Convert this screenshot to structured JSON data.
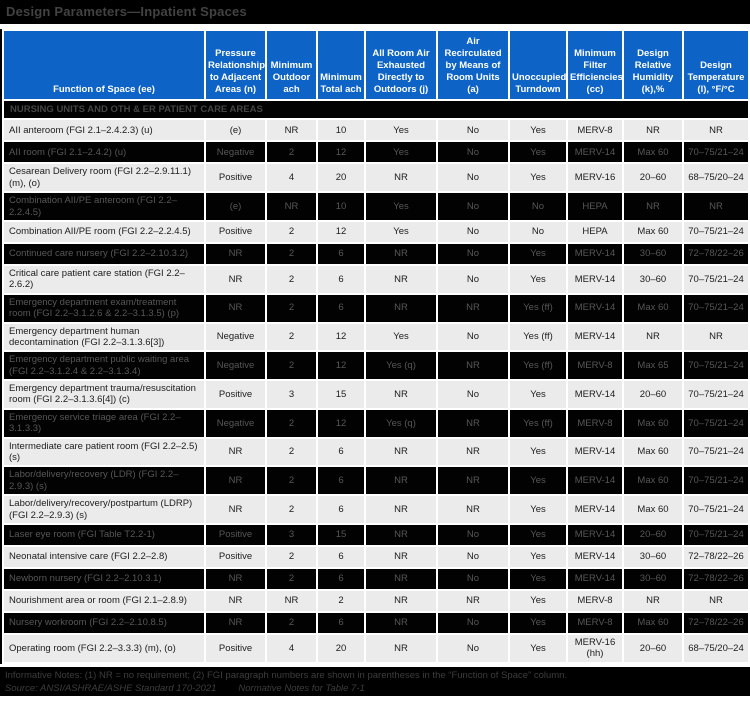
{
  "title": "Design Parameters—Inpatient Spaces",
  "colors": {
    "title_bar_bg": "#000000",
    "header_blue": "#0d63c6",
    "header_text": "#ffffff",
    "light_row_bg": "#ebebeb",
    "dark_row_bg": "#020202",
    "dark_row_text": "#575757",
    "footer_bg": "#000000"
  },
  "table": {
    "columns": [
      "Function of Space (ee)",
      "Pressure Relationship to Adjacent Areas (n)",
      "Minimum Outdoor ach",
      "Minimum Total ach",
      "All Room Air Exhausted Directly to Outdoors (j)",
      "Air Recirculated by Means of Room Units (a)",
      "Unoccupied Turndown",
      "Minimum Filter Efficiencies (cc)",
      "Design Relative Humidity (k),%",
      "Design Temperature (l), °F/°C"
    ],
    "section_header": "NURSING UNITS AND OTH & ER PATIENT CARE AREAS",
    "rows": [
      {
        "name": "AII anteroom (FGI 2.1–2.4.2.3) (u)",
        "values": [
          "(e)",
          "NR",
          "10",
          "Yes",
          "No",
          "Yes",
          "MERV-8",
          "NR",
          "NR"
        ]
      },
      {
        "name": "AII room (FGI 2.1–2.4.2) (u)",
        "values": [
          "Negative",
          "2",
          "12",
          "Yes",
          "No",
          "Yes",
          "MERV-14",
          "Max 60",
          "70–75/21–24"
        ]
      },
      {
        "name": "Cesarean Delivery room (FGI 2.2–2.9.11.1) (m), (o)",
        "values": [
          "Positive",
          "4",
          "20",
          "NR",
          "No",
          "Yes",
          "MERV-16",
          "20–60",
          "68–75/20–24"
        ]
      },
      {
        "name": "Combination AII/PE anteroom (FGI 2.2–2.2.4.5)",
        "values": [
          "(e)",
          "NR",
          "10",
          "Yes",
          "No",
          "No",
          "HEPA",
          "NR",
          "NR"
        ]
      },
      {
        "name": "Combination AII/PE room (FGI 2.2–2.2.4.5)",
        "values": [
          "Positive",
          "2",
          "12",
          "Yes",
          "No",
          "No",
          "HEPA",
          "Max 60",
          "70–75/21–24"
        ]
      },
      {
        "name": "Continued care nursery (FGI 2.2–2.10.3.2)",
        "values": [
          "NR",
          "2",
          "6",
          "NR",
          "No",
          "Yes",
          "MERV-14",
          "30–60",
          "72–78/22–26"
        ]
      },
      {
        "name": "Critical care patient care station (FGI 2.2–2.6.2)",
        "values": [
          "NR",
          "2",
          "6",
          "NR",
          "No",
          "Yes",
          "MERV-14",
          "30–60",
          "70–75/21–24"
        ]
      },
      {
        "name": "Emergency department exam/treatment room (FGI 2.2–3.1.2.6 & 2.2–3.1.3.5) (p)",
        "values": [
          "NR",
          "2",
          "6",
          "NR",
          "NR",
          "Yes (ff)",
          "MERV-14",
          "Max 60",
          "70–75/21–24"
        ]
      },
      {
        "name": "Emergency department human decontamination (FGI 2.2–3.1.3.6[3])",
        "values": [
          "Negative",
          "2",
          "12",
          "Yes",
          "No",
          "Yes (ff)",
          "MERV-14",
          "NR",
          "NR"
        ]
      },
      {
        "name": "Emergency department public waiting area (FGI 2.2–3.1.2.4 & 2.2–3.1.3.4)",
        "values": [
          "Negative",
          "2",
          "12",
          "Yes (q)",
          "NR",
          "Yes (ff)",
          "MERV-8",
          "Max 65",
          "70–75/21–24"
        ]
      },
      {
        "name": "Emergency department trauma/resuscitation room (FGI 2.2–3.1.3.6[4]) (c)",
        "values": [
          "Positive",
          "3",
          "15",
          "NR",
          "No",
          "Yes",
          "MERV-14",
          "20–60",
          "70–75/21–24"
        ]
      },
      {
        "name": "Emergency service triage area (FGI 2.2–3.1.3.3)",
        "values": [
          "Negative",
          "2",
          "12",
          "Yes (q)",
          "NR",
          "Yes (ff)",
          "MERV-8",
          "Max 60",
          "70–75/21–24"
        ]
      },
      {
        "name": "Intermediate care patient room (FGI 2.2–2.5) (s)",
        "values": [
          "NR",
          "2",
          "6",
          "NR",
          "NR",
          "Yes",
          "MERV-14",
          "Max 60",
          "70–75/21–24"
        ]
      },
      {
        "name": "Labor/delivery/recovery (LDR) (FGI 2.2–2.9.3) (s)",
        "values": [
          "NR",
          "2",
          "6",
          "NR",
          "NR",
          "Yes",
          "MERV-14",
          "Max 60",
          "70–75/21–24"
        ]
      },
      {
        "name": "Labor/delivery/recovery/postpartum (LDRP) (FGI 2.2–2.9.3) (s)",
        "values": [
          "NR",
          "2",
          "6",
          "NR",
          "NR",
          "Yes",
          "MERV-14",
          "Max 60",
          "70–75/21–24"
        ]
      },
      {
        "name": "Laser eye room (FGI Table T2.2-1)",
        "values": [
          "Positive",
          "3",
          "15",
          "NR",
          "No",
          "Yes",
          "MERV-14",
          "20–60",
          "70–75/21–24"
        ]
      },
      {
        "name": "Neonatal intensive care (FGI 2.2–2.8)",
        "values": [
          "Positive",
          "2",
          "6",
          "NR",
          "No",
          "Yes",
          "MERV-14",
          "30–60",
          "72–78/22–26"
        ]
      },
      {
        "name": "Newborn nursery (FGI 2.2–2.10.3.1)",
        "values": [
          "NR",
          "2",
          "6",
          "NR",
          "No",
          "Yes",
          "MERV-14",
          "30–60",
          "72–78/22–26"
        ]
      },
      {
        "name": "Nourishment area or room (FGI 2.1–2.8.9)",
        "values": [
          "NR",
          "NR",
          "2",
          "NR",
          "NR",
          "Yes",
          "MERV-8",
          "NR",
          "NR"
        ]
      },
      {
        "name": "Nursery workroom (FGI 2.2–2.10.8.5)",
        "values": [
          "NR",
          "2",
          "6",
          "NR",
          "No",
          "Yes",
          "MERV-8",
          "Max 60",
          "72–78/22–26"
        ]
      },
      {
        "name": "Operating room (FGI 2.2–3.3.3) (m), (o)",
        "values": [
          "Positive",
          "4",
          "20",
          "NR",
          "No",
          "Yes",
          "MERV-16 (hh)",
          "20–60",
          "68–75/20–24"
        ]
      }
    ]
  },
  "footer": {
    "notes": "Informative Notes: (1) NR = no requirement; (2) FGI paragraph numbers are shown in parentheses in the “Function of Space” column.",
    "source": "Source: ANSI/ASHRAE/ASHE Standard 170-2021",
    "source_ref": "Normative Notes for Table 7-1"
  }
}
